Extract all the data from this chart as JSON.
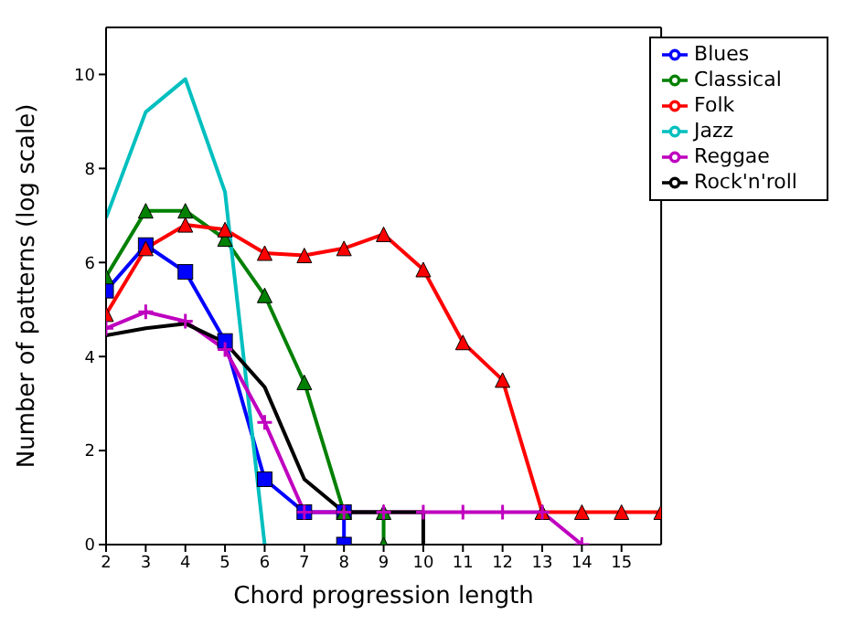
{
  "chart_data": {
    "type": "line",
    "xlabel": "Chord progression length",
    "ylabel": "Number of patterns (log scale)",
    "xlim": [
      2,
      16
    ],
    "xticks": [
      2,
      3,
      4,
      5,
      6,
      7,
      8,
      9,
      10,
      11,
      12,
      13,
      14,
      15
    ],
    "ylim": [
      0,
      11
    ],
    "yticks": [
      0,
      2,
      4,
      6,
      8,
      10
    ],
    "grid": false,
    "legend": "top right",
    "series": [
      {
        "name": "Blues",
        "color": "#0000ff",
        "marker": "square",
        "x": [
          2,
          3,
          4,
          5,
          6,
          7,
          8,
          8
        ],
        "values": [
          5.4,
          6.37,
          5.8,
          4.33,
          1.39,
          0.69,
          0.69,
          0
        ]
      },
      {
        "name": "Classical",
        "color": "#008000",
        "marker": "triangle",
        "x": [
          2,
          3,
          4,
          5,
          6,
          7,
          8,
          9,
          9
        ],
        "values": [
          5.7,
          7.1,
          7.1,
          6.5,
          5.3,
          3.45,
          0.69,
          0.69,
          0
        ]
      },
      {
        "name": "Folk",
        "color": "#ff0000",
        "marker": "triangle",
        "x": [
          2,
          3,
          4,
          5,
          6,
          7,
          8,
          9,
          10,
          11,
          12,
          13,
          14,
          15,
          16
        ],
        "values": [
          4.9,
          6.3,
          6.8,
          6.7,
          6.2,
          6.15,
          6.3,
          6.6,
          5.85,
          4.3,
          3.5,
          0.69,
          0.69,
          0.69,
          0.69
        ]
      },
      {
        "name": "Jazz",
        "color": "#00bfbf",
        "marker": "none",
        "x": [
          2,
          3,
          4,
          5,
          6
        ],
        "values": [
          6.95,
          9.2,
          9.9,
          7.5,
          0
        ]
      },
      {
        "name": "Reggae",
        "color": "#bf00bf",
        "marker": "cross",
        "x": [
          2,
          3,
          4,
          5,
          6,
          7,
          8,
          9,
          10,
          11,
          12,
          13,
          14
        ],
        "values": [
          4.6,
          4.95,
          4.75,
          4.15,
          2.6,
          0.69,
          0.69,
          0.69,
          0.69,
          0.69,
          0.69,
          0.69,
          0
        ]
      },
      {
        "name": "Rock'n'roll",
        "color": "#000000",
        "marker": "none",
        "x": [
          2,
          3,
          4,
          5,
          6,
          7,
          8,
          9,
          10,
          10
        ],
        "values": [
          4.45,
          4.6,
          4.7,
          4.3,
          3.35,
          1.39,
          0.69,
          0.69,
          0.69,
          0
        ]
      }
    ]
  }
}
